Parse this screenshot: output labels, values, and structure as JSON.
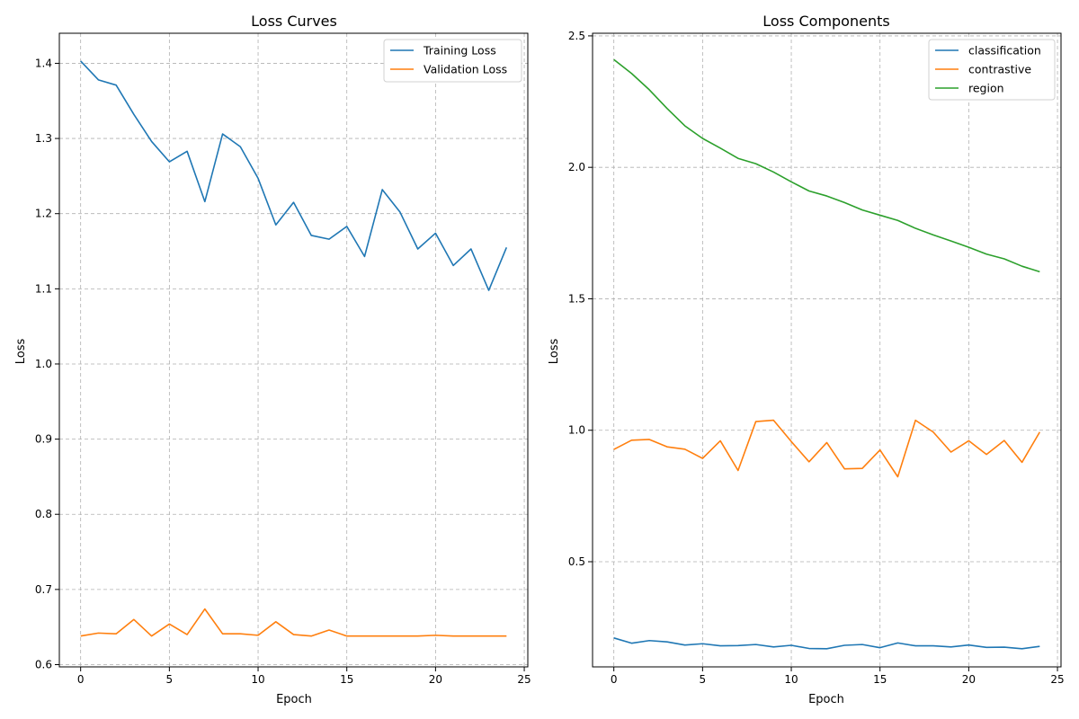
{
  "chart_data": [
    {
      "type": "line",
      "title": "Loss Curves",
      "xlabel": "Epoch",
      "ylabel": "Loss",
      "xlim": [
        -1.2,
        25.2
      ],
      "ylim": [
        0.597,
        1.44
      ],
      "xticks": [
        0,
        5,
        10,
        15,
        20,
        25
      ],
      "yticks": [
        0.6,
        0.7,
        0.8,
        0.9,
        1.0,
        1.1,
        1.2,
        1.3,
        1.4
      ],
      "ytick_labels": [
        "0.6",
        "0.7",
        "0.8",
        "0.9",
        "1.0",
        "1.1",
        "1.2",
        "1.3",
        "1.4"
      ],
      "grid": true,
      "legend": "top-right",
      "x": [
        0,
        1,
        2,
        3,
        4,
        5,
        6,
        7,
        8,
        9,
        10,
        11,
        12,
        13,
        14,
        15,
        16,
        17,
        18,
        19,
        20,
        21,
        22,
        23,
        24
      ],
      "series": [
        {
          "name": "Training Loss",
          "color": "#1f77b4",
          "values": [
            1.403,
            1.378,
            1.371,
            1.332,
            1.296,
            1.269,
            1.283,
            1.216,
            1.306,
            1.289,
            1.247,
            1.185,
            1.215,
            1.171,
            1.166,
            1.183,
            1.143,
            1.232,
            1.202,
            1.153,
            1.174,
            1.131,
            1.153,
            1.098,
            1.155
          ]
        },
        {
          "name": "Validation Loss",
          "color": "#ff7f0e",
          "values": [
            0.638,
            0.642,
            0.641,
            0.66,
            0.638,
            0.654,
            0.64,
            0.674,
            0.641,
            0.641,
            0.639,
            0.657,
            0.64,
            0.638,
            0.646,
            0.638,
            0.638,
            0.638,
            0.638,
            0.638,
            0.639,
            0.638,
            0.638,
            0.638,
            0.638
          ]
        }
      ]
    },
    {
      "type": "line",
      "title": "Loss Components",
      "xlabel": "Epoch",
      "ylabel": "Loss",
      "xlim": [
        -1.2,
        25.2
      ],
      "ylim": [
        0.1,
        2.51
      ],
      "xticks": [
        0,
        5,
        10,
        15,
        20,
        25
      ],
      "yticks": [
        0.5,
        1.0,
        1.5,
        2.0,
        2.5
      ],
      "ytick_labels": [
        "0.5",
        "1.0",
        "1.5",
        "2.0",
        "2.5"
      ],
      "grid": true,
      "legend": "top-right",
      "x": [
        0,
        1,
        2,
        3,
        4,
        5,
        6,
        7,
        8,
        9,
        10,
        11,
        12,
        13,
        14,
        15,
        16,
        17,
        18,
        19,
        20,
        21,
        22,
        23,
        24
      ],
      "series": [
        {
          "name": "classification",
          "color": "#1f77b4",
          "values": [
            0.21,
            0.19,
            0.2,
            0.195,
            0.183,
            0.188,
            0.18,
            0.181,
            0.185,
            0.176,
            0.182,
            0.17,
            0.169,
            0.182,
            0.185,
            0.173,
            0.191,
            0.18,
            0.18,
            0.176,
            0.183,
            0.174,
            0.175,
            0.169,
            0.178
          ]
        },
        {
          "name": "contrastive",
          "color": "#ff7f0e",
          "values": [
            0.927,
            0.962,
            0.965,
            0.937,
            0.928,
            0.893,
            0.96,
            0.847,
            1.033,
            1.038,
            0.957,
            0.88,
            0.953,
            0.853,
            0.855,
            0.925,
            0.823,
            1.038,
            0.993,
            0.917,
            0.96,
            0.908,
            0.961,
            0.878,
            0.993
          ]
        },
        {
          "name": "region",
          "color": "#2ca02c",
          "values": [
            2.41,
            2.357,
            2.295,
            2.224,
            2.158,
            2.11,
            2.073,
            2.034,
            2.014,
            1.982,
            1.945,
            1.91,
            1.891,
            1.866,
            1.838,
            1.818,
            1.798,
            1.768,
            1.743,
            1.72,
            1.696,
            1.67,
            1.652,
            1.624,
            1.603
          ]
        }
      ]
    }
  ]
}
